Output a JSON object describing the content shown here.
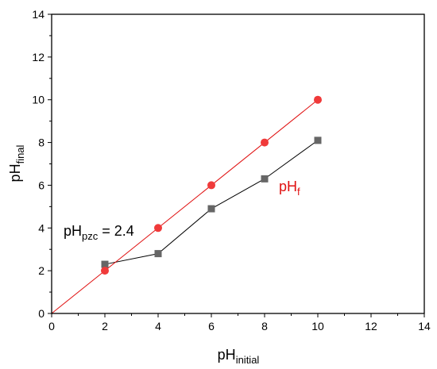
{
  "chart_data": {
    "type": "line",
    "title": "",
    "xlabel": {
      "main": "pH",
      "sub": "initial"
    },
    "ylabel": {
      "main": "pH",
      "sub": "final"
    },
    "xlim": [
      0,
      14
    ],
    "ylim": [
      0,
      14
    ],
    "xticks": [
      0,
      2,
      4,
      6,
      8,
      10,
      12,
      14
    ],
    "yticks": [
      0,
      2,
      4,
      6,
      8,
      10,
      12,
      14
    ],
    "grid": false,
    "series": [
      {
        "marker": "square",
        "color": "#666666",
        "line_color": "#000000",
        "x": [
          2,
          4,
          6,
          8,
          10
        ],
        "y": [
          2.3,
          2.8,
          4.9,
          6.3,
          8.1
        ]
      },
      {
        "marker": "circle",
        "color": "#f03a3a",
        "line_color": "#e01010",
        "line_x": [
          0,
          10
        ],
        "line_y": [
          0,
          10
        ],
        "x": [
          2,
          4,
          6,
          8,
          10
        ],
        "y": [
          2,
          4,
          6,
          8,
          10
        ]
      }
    ],
    "annotations": [
      {
        "id": "pzc",
        "main": "pH",
        "sub": "pzc",
        "tail": " = 2.4",
        "color": "#000000",
        "x": 2.4,
        "y": 2.4
      },
      {
        "id": "phf",
        "main": "pH",
        "sub": "f",
        "tail": "",
        "color": "#e01010"
      }
    ]
  }
}
